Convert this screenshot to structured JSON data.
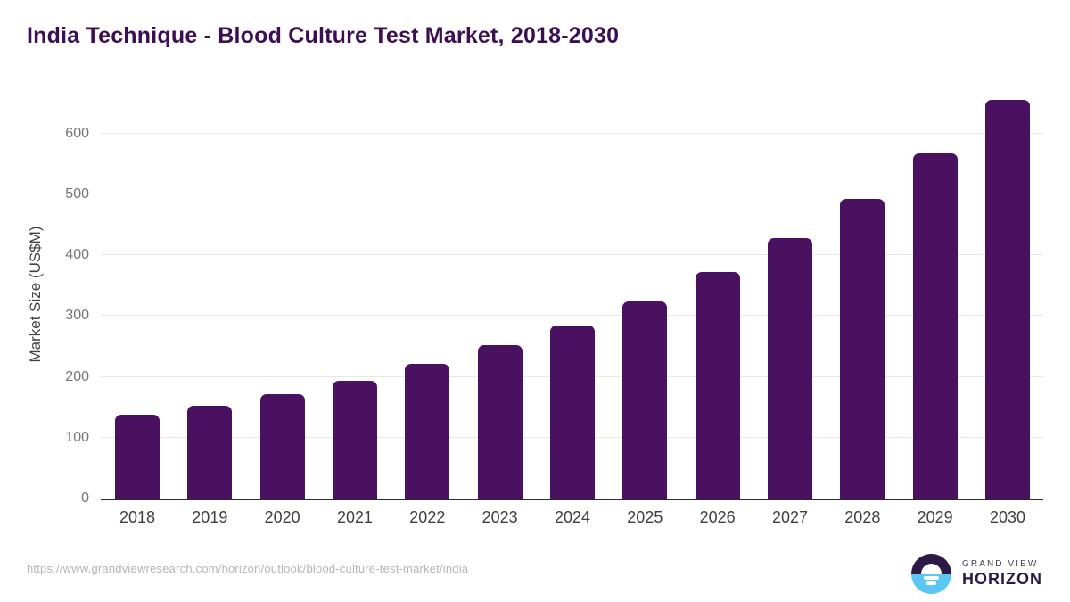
{
  "header": {
    "title": "India Technique - Blood Culture Test Market, 2018-2030"
  },
  "chart_data": {
    "type": "bar",
    "title": "India Technique - Blood Culture Test Market, 2018-2030",
    "categories": [
      "2018",
      "2019",
      "2020",
      "2021",
      "2022",
      "2023",
      "2024",
      "2025",
      "2026",
      "2027",
      "2028",
      "2029",
      "2030"
    ],
    "values": [
      138,
      153,
      172,
      194,
      221,
      252,
      285,
      324,
      373,
      428,
      492,
      568,
      655
    ],
    "xlabel": "",
    "ylabel": "Market Size (US$M)",
    "yticks": [
      0,
      100,
      200,
      300,
      400,
      500,
      600
    ],
    "ylim": [
      0,
      673
    ],
    "grid": "horizontal",
    "legend": "none",
    "bar_color": "#4a1161"
  },
  "footer": {
    "source_url": "https://www.grandviewresearch.com/horizon/outlook/blood-culture-test-market/india",
    "logo": {
      "top": "GRAND VIEW",
      "bottom": "HORIZON"
    }
  },
  "colors": {
    "title": "#3b1053",
    "bar": "#4a1161",
    "gridline": "#e7e7e7",
    "axis_line": "#2b2b2b",
    "y_tick_label": "#757575",
    "x_tick_label": "#3f3f3f",
    "axis_title": "#424242",
    "source_url": "#b5b5b5",
    "logo_dark": "#2b1a47",
    "logo_blue": "#5ac6f2"
  }
}
